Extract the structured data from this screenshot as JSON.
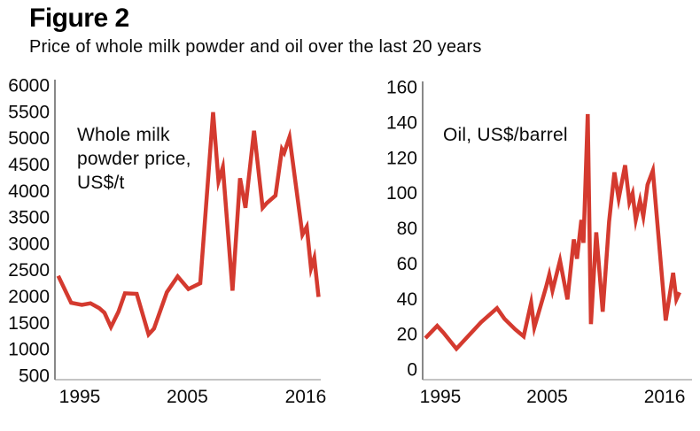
{
  "header": {
    "figure_label": "Figure 2",
    "title": "Price of whole milk powder and oil over the last 20 years"
  },
  "colors": {
    "line": "#d43a2f",
    "text": "#0a0a0a",
    "y_axis": "#3a3a3a",
    "x_axis": "#8a8a8a",
    "background": "#ffffff"
  },
  "chart_data": [
    {
      "type": "line",
      "name": "whole-milk-powder-price",
      "series_label": "Whole milk powder price, US$/t",
      "y_ticks": [
        6000,
        5500,
        5000,
        4500,
        4000,
        3500,
        3000,
        2500,
        2000,
        1500,
        1000,
        500
      ],
      "x_ticks": [
        "1995",
        "2005",
        "2016"
      ],
      "x_tick_years": [
        1995,
        2005,
        2016
      ],
      "ylim": [
        500,
        6000
      ],
      "xlim": [
        1993,
        2017.4
      ],
      "grid": false,
      "legend_position": "none",
      "points": [
        [
          1993.0,
          2400
        ],
        [
          1994.2,
          1890
        ],
        [
          1995.2,
          1850
        ],
        [
          1996.0,
          1880
        ],
        [
          1996.8,
          1790
        ],
        [
          1997.3,
          1700
        ],
        [
          1997.9,
          1430
        ],
        [
          1998.6,
          1720
        ],
        [
          1999.2,
          2070
        ],
        [
          2000.3,
          2060
        ],
        [
          2001.4,
          1290
        ],
        [
          2001.9,
          1400
        ],
        [
          2003.1,
          2090
        ],
        [
          2004.1,
          2390
        ],
        [
          2005.1,
          2150
        ],
        [
          2006.2,
          2260
        ],
        [
          2007.4,
          5500
        ],
        [
          2007.9,
          4190
        ],
        [
          2008.3,
          4460
        ],
        [
          2009.2,
          2120
        ],
        [
          2009.9,
          4250
        ],
        [
          2010.4,
          3690
        ],
        [
          2011.2,
          5150
        ],
        [
          2012.0,
          3690
        ],
        [
          2012.4,
          3780
        ],
        [
          2013.2,
          3920
        ],
        [
          2013.8,
          4800
        ],
        [
          2014.0,
          4730
        ],
        [
          2014.5,
          5030
        ],
        [
          2015.7,
          3180
        ],
        [
          2016.1,
          3330
        ],
        [
          2016.5,
          2540
        ],
        [
          2016.8,
          2740
        ],
        [
          2017.2,
          2000
        ]
      ]
    },
    {
      "type": "line",
      "name": "oil-price",
      "series_label": "Oil, US$/barrel",
      "y_ticks": [
        160,
        140,
        120,
        100,
        80,
        60,
        40,
        20,
        0
      ],
      "x_ticks": [
        "1995",
        "2005",
        "2016"
      ],
      "x_tick_years": [
        1995,
        2005,
        2016
      ],
      "ylim": [
        0,
        160
      ],
      "xlim": [
        1993.5,
        2017.6
      ],
      "grid": false,
      "legend_position": "none",
      "points": [
        [
          1993.6,
          18
        ],
        [
          1994.7,
          25
        ],
        [
          1995.3,
          21
        ],
        [
          1996.5,
          12
        ],
        [
          1998.8,
          27
        ],
        [
          2000.3,
          35
        ],
        [
          2001.0,
          29
        ],
        [
          2002.0,
          23
        ],
        [
          2002.8,
          19
        ],
        [
          2003.5,
          38
        ],
        [
          2003.8,
          24
        ],
        [
          2004.9,
          47
        ],
        [
          2005.2,
          54
        ],
        [
          2005.5,
          45
        ],
        [
          2006.2,
          62
        ],
        [
          2006.9,
          40
        ],
        [
          2007.5,
          74
        ],
        [
          2007.8,
          63
        ],
        [
          2008.2,
          85
        ],
        [
          2008.4,
          72
        ],
        [
          2008.8,
          145
        ],
        [
          2009.1,
          26
        ],
        [
          2009.6,
          78
        ],
        [
          2010.2,
          33
        ],
        [
          2010.8,
          84
        ],
        [
          2011.3,
          112
        ],
        [
          2011.7,
          97
        ],
        [
          2012.3,
          116
        ],
        [
          2012.7,
          95
        ],
        [
          2013.0,
          100
        ],
        [
          2013.3,
          85
        ],
        [
          2013.7,
          96
        ],
        [
          2014.0,
          87
        ],
        [
          2014.4,
          105
        ],
        [
          2014.9,
          113
        ],
        [
          2016.1,
          28
        ],
        [
          2016.8,
          55
        ],
        [
          2017.1,
          40
        ],
        [
          2017.4,
          44
        ]
      ]
    }
  ]
}
